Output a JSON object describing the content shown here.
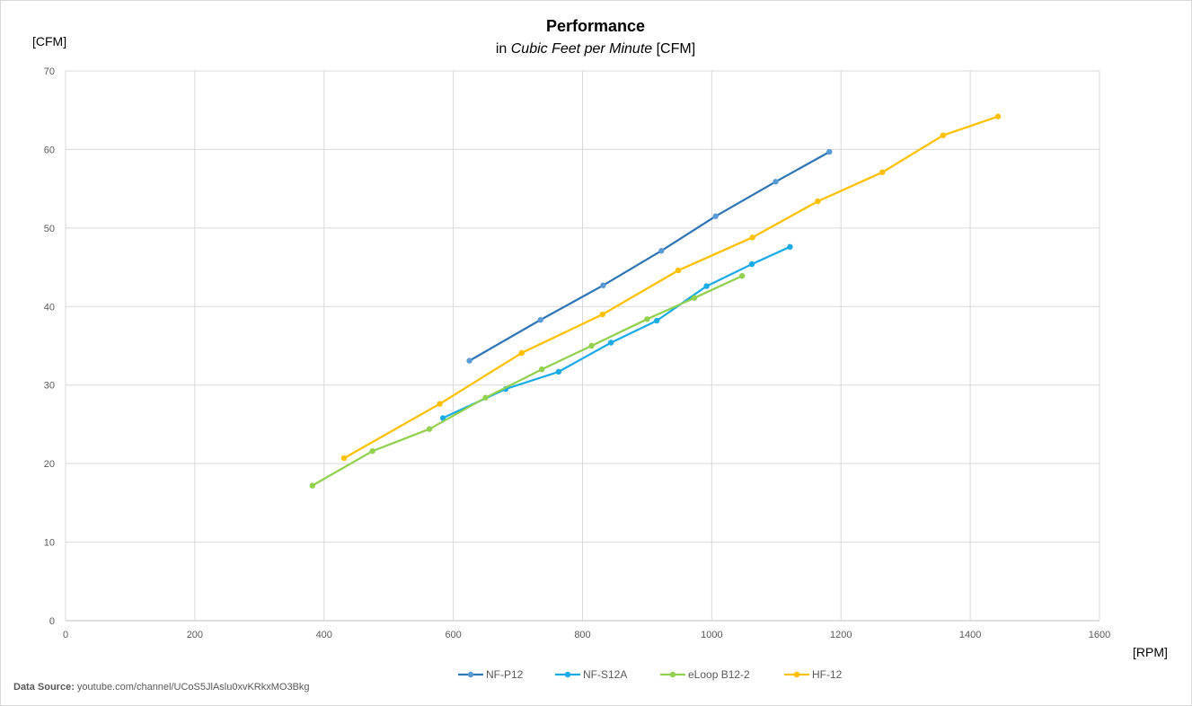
{
  "chart_data": {
    "type": "line",
    "title": "Performance",
    "subtitle_prefix": "in ",
    "subtitle_italic": "Cubic Feet per Minute",
    "subtitle_suffix": " [CFM]",
    "ylabel": "[CFM]",
    "xlabel": "[RPM]",
    "xlim": [
      0,
      1600
    ],
    "ylim": [
      0,
      70
    ],
    "x_ticks": [
      0,
      200,
      400,
      600,
      800,
      1000,
      1200,
      1400,
      1600
    ],
    "y_ticks": [
      0,
      10,
      20,
      30,
      40,
      50,
      60,
      70
    ],
    "grid": true,
    "legend_position": "bottom",
    "series": [
      {
        "name": "NF-P12",
        "color": "#2e75b6",
        "marker_color": "#5b9bd5",
        "points": [
          [
            625,
            33.1
          ],
          [
            735,
            38.3
          ],
          [
            832,
            42.7
          ],
          [
            922,
            47.1
          ],
          [
            1006,
            51.5
          ],
          [
            1099,
            55.9
          ],
          [
            1182,
            59.7
          ]
        ]
      },
      {
        "name": "NF-S12A",
        "color": "#1aabe6",
        "marker_color": "#1aabe6",
        "points": [
          [
            584,
            25.8
          ],
          [
            681,
            29.5
          ],
          [
            763,
            31.7
          ],
          [
            844,
            35.4
          ],
          [
            915,
            38.2
          ],
          [
            992,
            42.6
          ],
          [
            1062,
            45.4
          ],
          [
            1121,
            47.6
          ]
        ]
      },
      {
        "name": "eLoop B12-2",
        "color": "#92d050",
        "marker_color": "#92d050",
        "points": [
          [
            382,
            17.2
          ],
          [
            475,
            21.6
          ],
          [
            563,
            24.4
          ],
          [
            650,
            28.4
          ],
          [
            737,
            32.0
          ],
          [
            814,
            35.0
          ],
          [
            900,
            38.4
          ],
          [
            973,
            41.1
          ],
          [
            1047,
            43.9
          ]
        ]
      },
      {
        "name": "HF-12",
        "color": "#ffc000",
        "marker_color": "#ffc000",
        "points": [
          [
            431,
            20.7
          ],
          [
            579,
            27.6
          ],
          [
            706,
            34.1
          ],
          [
            831,
            39.0
          ],
          [
            948,
            44.6
          ],
          [
            1063,
            48.8
          ],
          [
            1164,
            53.4
          ],
          [
            1264,
            57.1
          ],
          [
            1358,
            61.8
          ],
          [
            1443,
            64.2
          ]
        ]
      }
    ]
  },
  "footer": {
    "source_label": "Data Source:",
    "source_text": " youtube.com/channel/UCoS5JlAslu0xvKRkxMO3Bkg"
  }
}
